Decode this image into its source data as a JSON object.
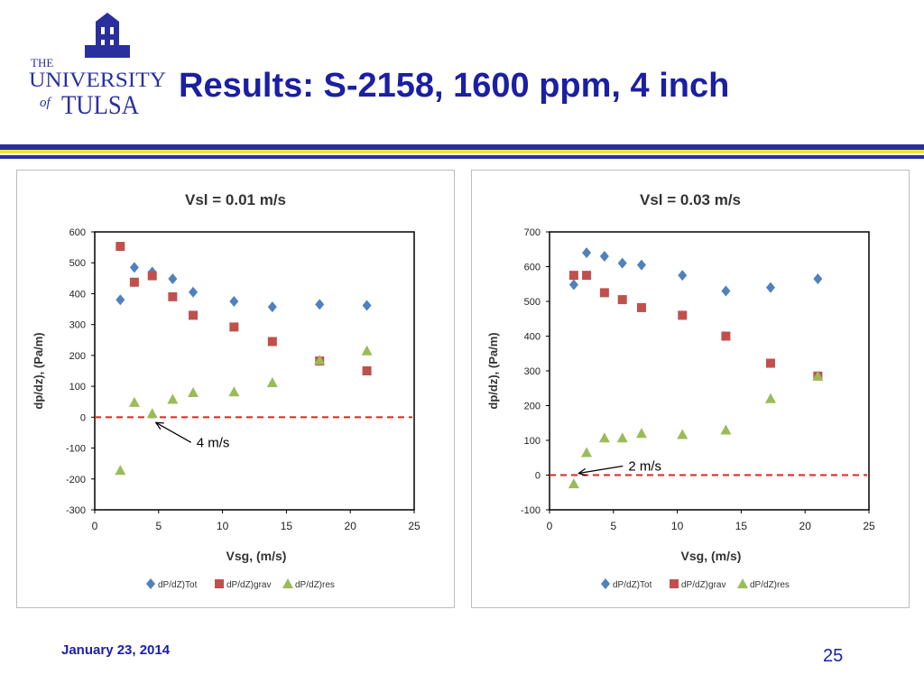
{
  "header": {
    "title": "Results: S-2158, 1600 ppm, 4 inch",
    "logo": {
      "line1": "THE",
      "line2": "UNIVERSITY",
      "line3": "of",
      "line4": "TULSA"
    }
  },
  "colors": {
    "title": "#1a1fa3",
    "rule_blue": "#2a2f9e",
    "rule_gold": "#f2e232",
    "tot": "#4f81bd",
    "grav": "#c0504d",
    "res": "#9bbb59",
    "zero_line": "#e0231e"
  },
  "chart_data": [
    {
      "type": "scatter",
      "title": "Vsl = 0.01 m/s",
      "xlabel": "Vsg, (m/s)",
      "ylabel": "dp/dz), (Pa/m)",
      "xlim": [
        0,
        25
      ],
      "ylim": [
        -300,
        600
      ],
      "xticks": [
        "0",
        "5",
        "10",
        "15",
        "20",
        "25"
      ],
      "yticks": [
        "600",
        "500",
        "400",
        "300",
        "200",
        "100",
        "0",
        "-100",
        "-200",
        "-300"
      ],
      "legend_position": "bottom",
      "grid": false,
      "series": [
        {
          "name": "dP/dZ)Tot",
          "marker": "diamond",
          "x": [
            2.0,
            3.1,
            4.5,
            6.1,
            7.7,
            10.9,
            13.9,
            17.6,
            21.3
          ],
          "y": [
            380,
            485,
            470,
            448,
            405,
            375,
            357,
            365,
            362
          ]
        },
        {
          "name": "dP/dZ)grav",
          "marker": "square",
          "x": [
            2.0,
            3.1,
            4.5,
            6.1,
            7.7,
            10.9,
            13.9,
            17.6,
            21.3
          ],
          "y": [
            553,
            437,
            458,
            390,
            330,
            292,
            245,
            182,
            150
          ]
        },
        {
          "name": "dP/dZ)res",
          "marker": "triangle",
          "x": [
            2.0,
            3.1,
            4.5,
            6.1,
            7.7,
            10.9,
            13.9,
            17.6,
            21.3
          ],
          "y": [
            -172,
            48,
            12,
            58,
            80,
            82,
            112,
            185,
            215
          ]
        }
      ],
      "reference_line": {
        "y": 0,
        "style": "dashed"
      },
      "annotation": {
        "text": "4 m/s",
        "x": 4.5,
        "y": 0
      }
    },
    {
      "type": "scatter",
      "title": "Vsl = 0.03 m/s",
      "xlabel": "Vsg, (m/s)",
      "ylabel": "dp/dz), (Pa/m)",
      "xlim": [
        0,
        25
      ],
      "ylim": [
        -100,
        700
      ],
      "xticks": [
        "0",
        "5",
        "10",
        "15",
        "20",
        "25"
      ],
      "yticks": [
        "700",
        "600",
        "500",
        "400",
        "300",
        "200",
        "100",
        "0",
        "-100"
      ],
      "legend_position": "bottom",
      "grid": false,
      "series": [
        {
          "name": "dP/dZ)Tot",
          "marker": "diamond",
          "x": [
            1.9,
            2.9,
            4.3,
            5.7,
            7.2,
            10.4,
            13.8,
            17.3,
            21.0
          ],
          "y": [
            548,
            640,
            630,
            610,
            605,
            575,
            530,
            540,
            565
          ]
        },
        {
          "name": "dP/dZ)grav",
          "marker": "square",
          "x": [
            1.9,
            2.9,
            4.3,
            5.7,
            7.2,
            10.4,
            13.8,
            17.3,
            21.0
          ],
          "y": [
            575,
            575,
            525,
            505,
            482,
            460,
            400,
            322,
            285
          ]
        },
        {
          "name": "dP/dZ)res",
          "marker": "triangle",
          "x": [
            1.9,
            2.9,
            4.3,
            5.7,
            7.2,
            10.4,
            13.8,
            17.3,
            21.0
          ],
          "y": [
            -25,
            65,
            107,
            107,
            120,
            117,
            130,
            220,
            285
          ]
        }
      ],
      "reference_line": {
        "y": 0,
        "style": "dashed"
      },
      "annotation": {
        "text": "2 m/s",
        "x": 2.0,
        "y": 0
      }
    }
  ],
  "footer": {
    "date": "January 23, 2014",
    "page_number": "25"
  }
}
